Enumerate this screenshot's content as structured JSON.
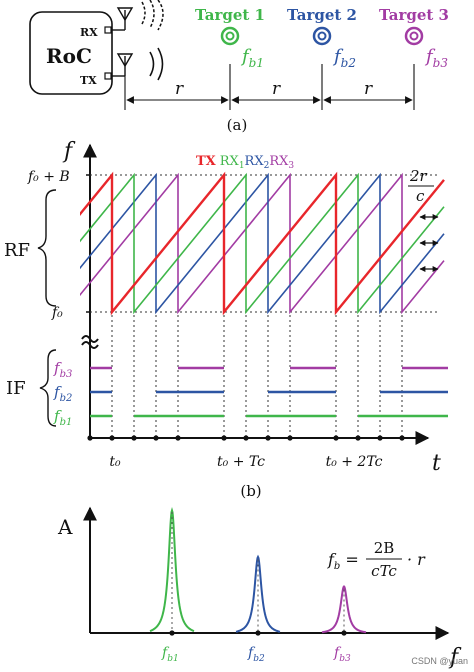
{
  "colors": {
    "tx": "#e8262b",
    "rx1": "#3fb64a",
    "rx2": "#2d55a3",
    "rx3": "#a23ca3",
    "ink": "#111111"
  },
  "panel_a": {
    "device_label": "RoC",
    "rx_label": "RX",
    "tx_label": "TX",
    "targets": [
      {
        "name": "Target 1",
        "freq_main": "f",
        "freq_sub": "b1"
      },
      {
        "name": "Target 2",
        "freq_main": "f",
        "freq_sub": "b2"
      },
      {
        "name": "Target 3",
        "freq_main": "f",
        "freq_sub": "b3"
      }
    ],
    "spacing_label": "r",
    "caption": "(a)"
  },
  "panel_b": {
    "f_axis": "f",
    "t_axis": "t",
    "f_top": "f₀ + B",
    "f_bottom": "f₀",
    "rf_label": "RF",
    "if_label": "IF",
    "legend": {
      "tx": "TX",
      "rx1_main": "RX",
      "rx1_sub": "1",
      "rx2_main": "RX",
      "rx2_sub": "2",
      "rx3_main": "RX",
      "rx3_sub": "3"
    },
    "delay_num": "2r",
    "delay_den": "c",
    "if_levels": [
      {
        "main": "f",
        "sub": "b3"
      },
      {
        "main": "f",
        "sub": "b2"
      },
      {
        "main": "f",
        "sub": "b1"
      }
    ],
    "time_ticks": [
      "t₀",
      "t₀ + Tc",
      "t₀ + 2Tc"
    ],
    "caption": "(b)"
  },
  "panel_c": {
    "y_axis": "A",
    "x_axis": "f",
    "peaks": [
      {
        "main": "f",
        "sub": "b1",
        "amplitude": 1.0
      },
      {
        "main": "f",
        "sub": "b2",
        "amplitude": 0.62
      },
      {
        "main": "f",
        "sub": "b3",
        "amplitude": 0.38
      }
    ],
    "formula_lhs_main": "f",
    "formula_lhs_sub": "b",
    "formula_num": "2B",
    "formula_den": "cTc",
    "formula_tail": "· r"
  },
  "watermark": "CSDN @yuan"
}
